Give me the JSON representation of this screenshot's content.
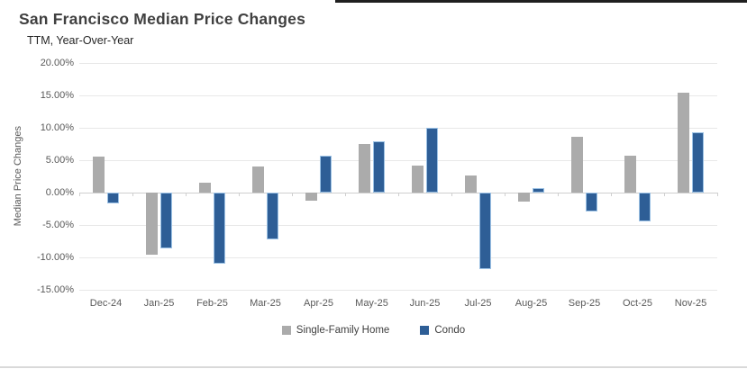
{
  "header": {
    "title": "San Francisco Median Price Changes",
    "subtitle": "TTM, Year-Over-Year"
  },
  "chart_data": {
    "type": "bar",
    "title": "San Francisco Median Price Changes",
    "subtitle": "TTM, Year-Over-Year",
    "categories": [
      "Dec-24",
      "Jan-25",
      "Feb-25",
      "Mar-25",
      "Apr-25",
      "May-25",
      "Jun-25",
      "Jul-25",
      "Aug-25",
      "Sep-25",
      "Oct-25",
      "Nov-25"
    ],
    "series": [
      {
        "name": "Single-Family Home",
        "color": "#ababab",
        "values": [
          5.5,
          -9.6,
          1.5,
          4.0,
          -1.3,
          7.5,
          4.2,
          2.6,
          -1.4,
          8.6,
          5.7,
          15.4
        ]
      },
      {
        "name": "Condo",
        "color": "#2e5e96",
        "values": [
          -1.7,
          -8.6,
          -11.0,
          -7.2,
          5.7,
          7.9,
          10.0,
          -11.8,
          0.7,
          -2.9,
          -4.4,
          9.3
        ]
      }
    ],
    "xlabel": "",
    "ylabel": "Median Price Changes",
    "y_ticks": [
      "20.00%",
      "15.00%",
      "10.00%",
      "5.00%",
      "0.00%",
      "-5.00%",
      "-10.00%",
      "-15.00%"
    ],
    "ylim": [
      -15,
      20
    ],
    "y_tick_step": 5,
    "grid": true,
    "legend_position": "bottom",
    "value_unit": "percent_yoy"
  },
  "colors": {
    "single_family": "#ababab",
    "condo": "#2e5e96",
    "condo_border": "#9cc2e5",
    "gridline": "#e8e8e8",
    "axis_text": "#595959",
    "title_text": "#404040",
    "top_rule": "#1f1f1f",
    "bottom_rule": "#d9d9d9"
  }
}
